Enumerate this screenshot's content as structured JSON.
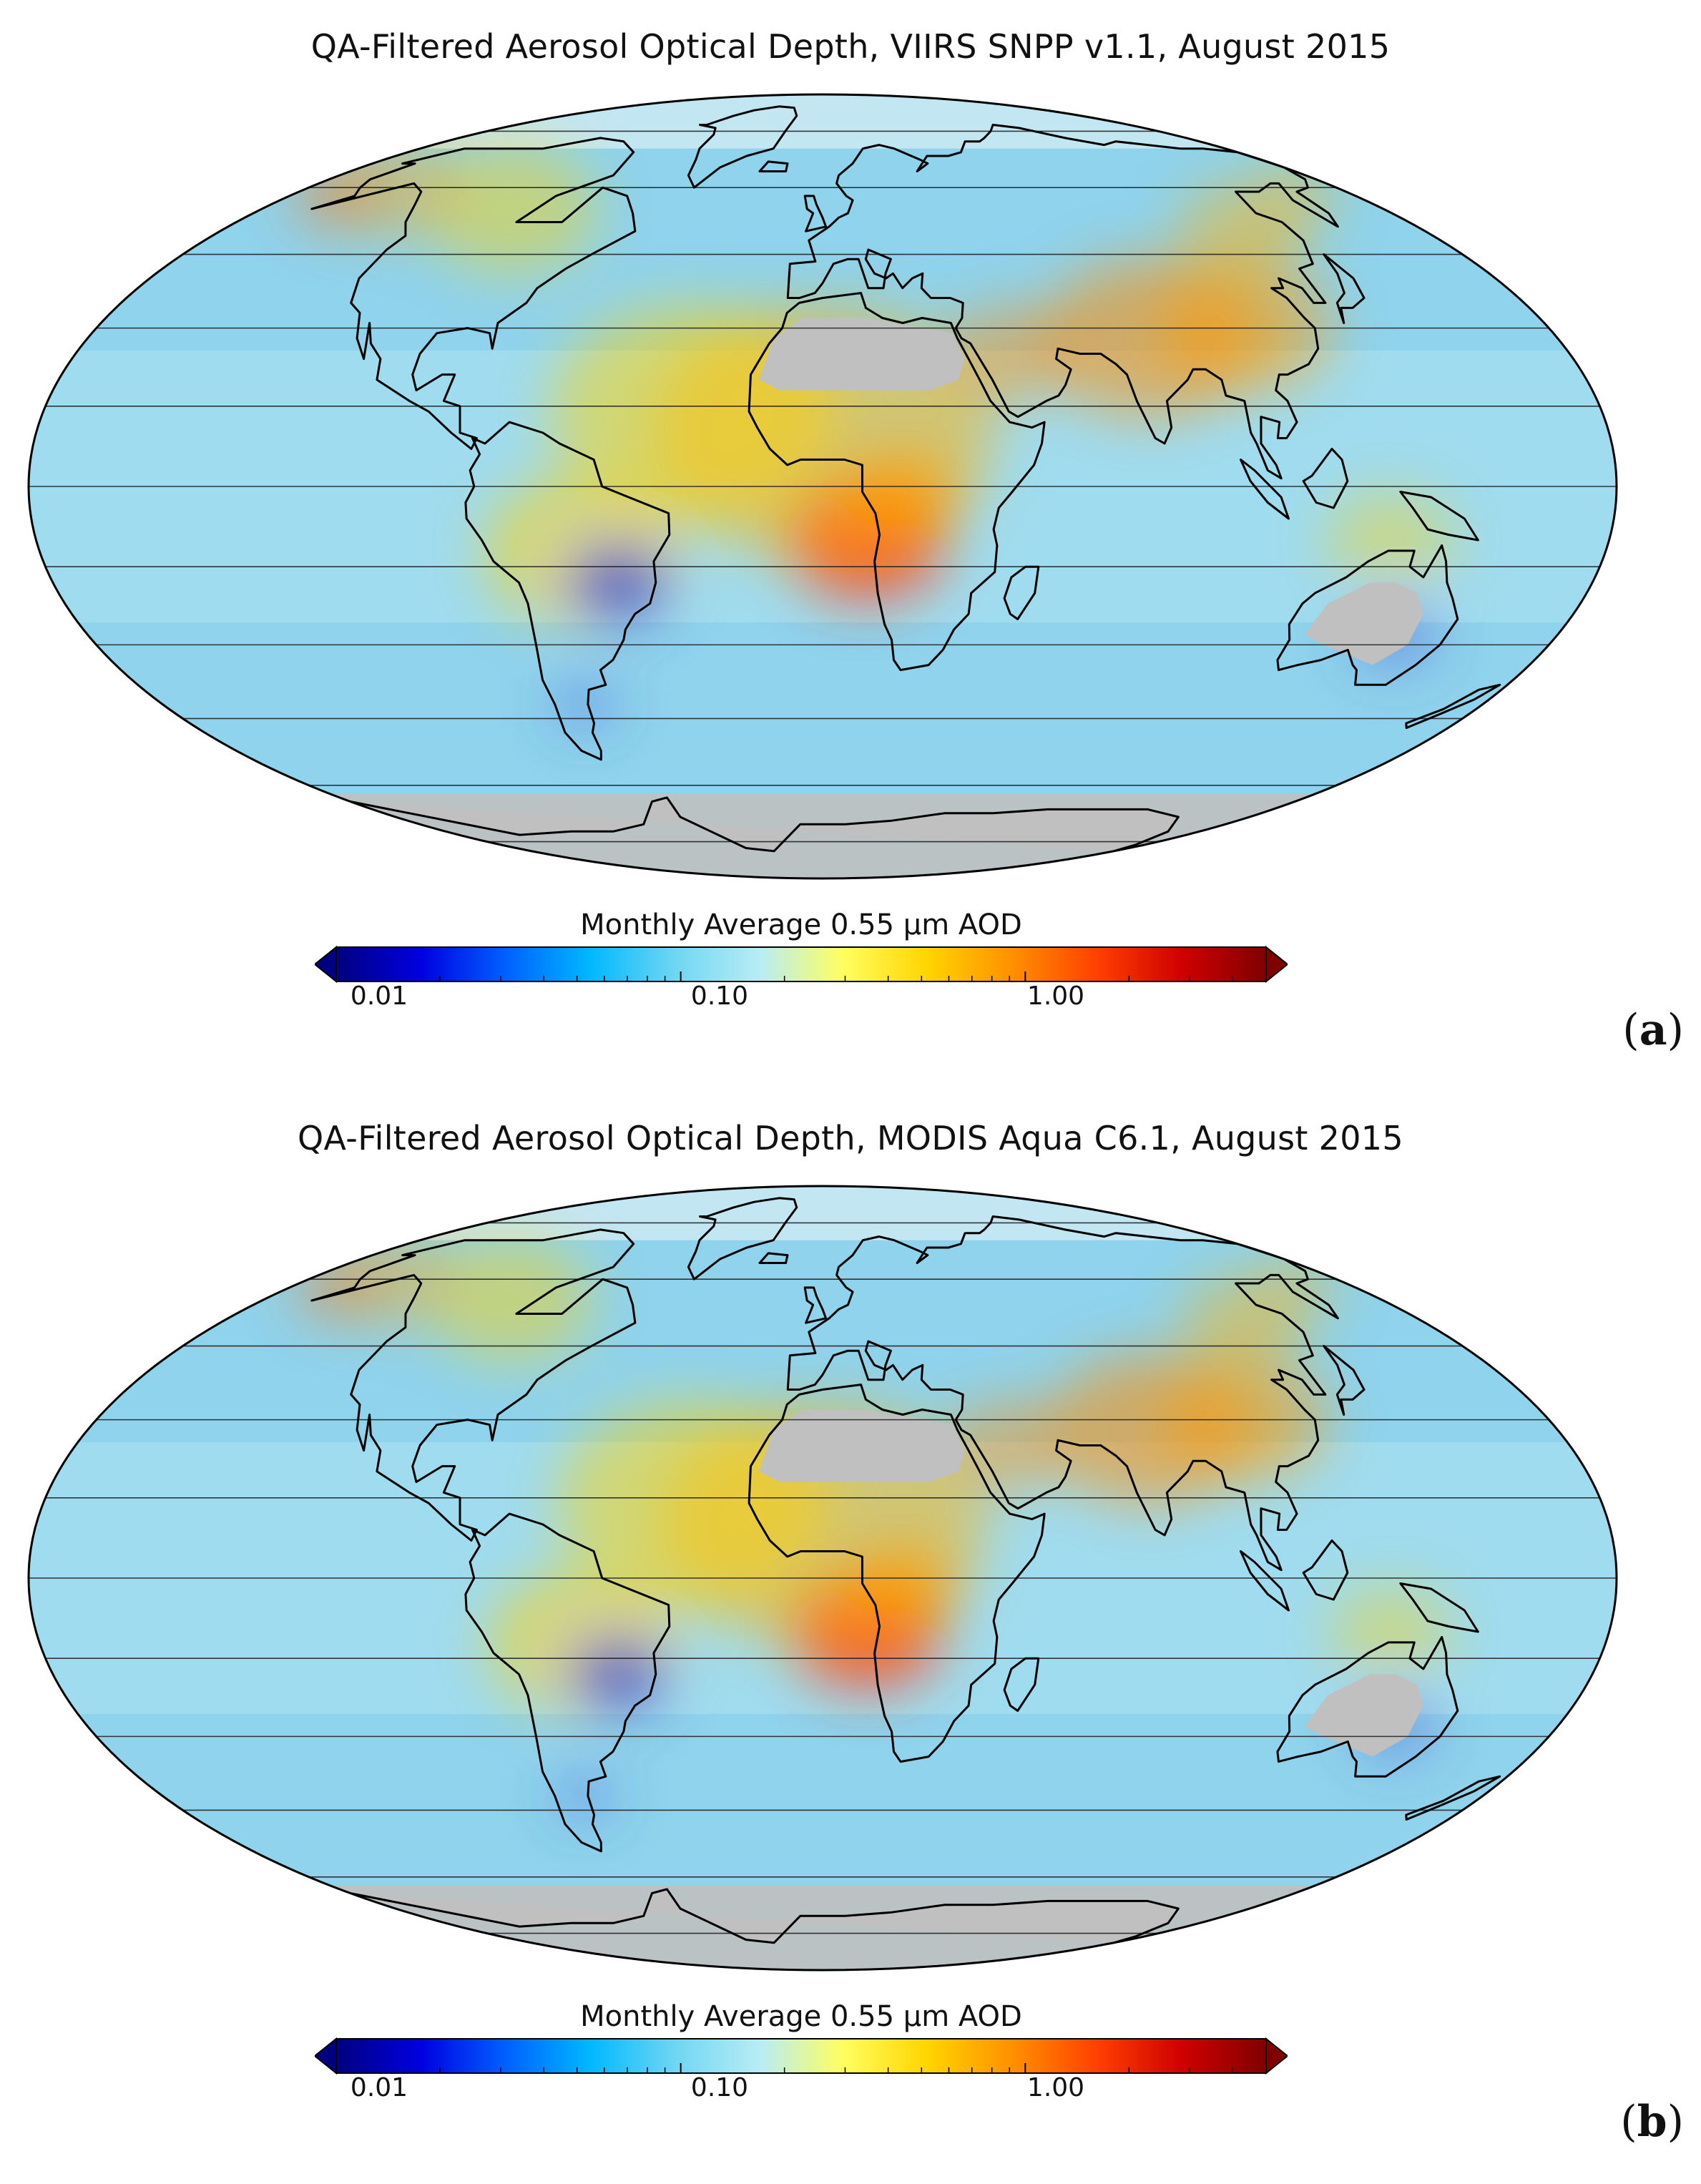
{
  "panels": [
    {
      "title": "QA-Filtered Aerosol Optical Depth, VIIRS SNPP v1.1, August 2015",
      "label_open": "(",
      "label_letter": "a",
      "label_close": ")"
    },
    {
      "title": "QA-Filtered Aerosol Optical Depth, MODIS Aqua C6.1, August 2015",
      "label_open": "(",
      "label_letter": "b",
      "label_close": ")"
    }
  ],
  "colorbar": {
    "title": "Monthly Average 0.55 µm AOD",
    "ticks": [
      "0.01",
      "0.10",
      "1.00"
    ],
    "scale": "log",
    "range": [
      0.01,
      5.0
    ],
    "colors": [
      "#000080",
      "#0000e0",
      "#0060ff",
      "#00b8ff",
      "#6fd6f2",
      "#b8ecf5",
      "#ffff60",
      "#ffd400",
      "#ff9000",
      "#ff4000",
      "#d00000",
      "#800000"
    ],
    "extend": "both"
  },
  "map": {
    "projection": "Mollweide",
    "ocean_color": "#8fd3ec",
    "no_data_color": "#c0c0c0",
    "coast_color": "#000000",
    "grid": true
  }
}
